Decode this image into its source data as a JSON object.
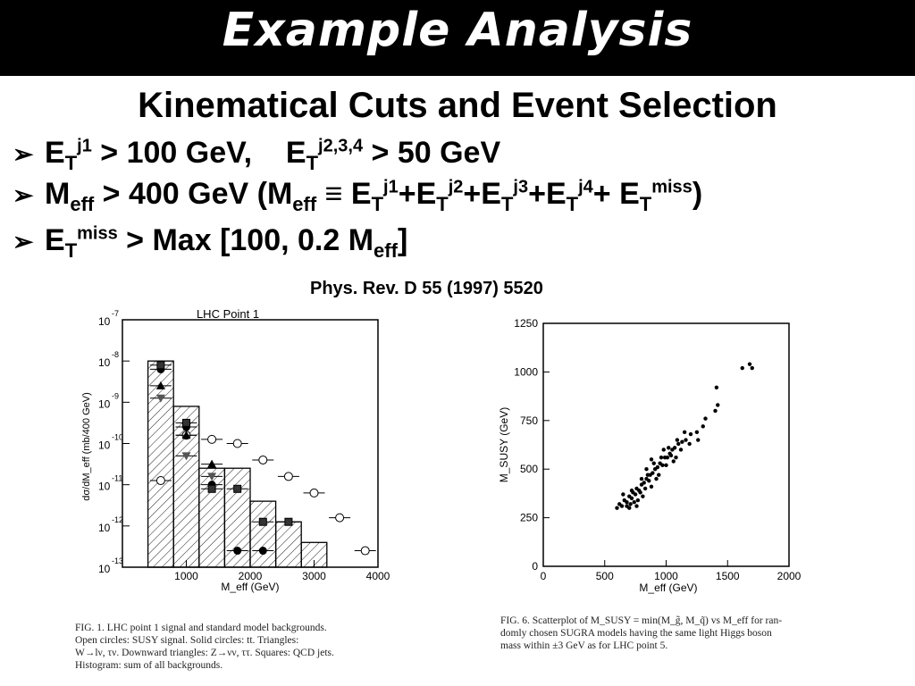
{
  "slide": {
    "title": "Example Analysis",
    "subtitle": "Kinematical Cuts and Event Selection",
    "bullets": {
      "b1": {
        "e1": "E",
        "t1": "T",
        "s1": "j1",
        "r1": " > 100 GeV,    E",
        "t2": "T",
        "s2": "j2,3,4",
        "r2": " > 50 GeV"
      },
      "b2": {
        "m": "M",
        "eff1": "eff",
        "r1": " > 400 GeV (M",
        "eff2": "eff",
        "r2": " ≡ E",
        "t1": "T",
        "s1": "j1",
        "r3": "+E",
        "t2": "T",
        "s2": "j2",
        "r4": "+E",
        "t3": "T",
        "s3": "j3",
        "r5": "+E",
        "t4": "T",
        "s4": "j4",
        "r6": "+ E",
        "t5": "T",
        "s5": "miss",
        "r7": ")"
      },
      "b3": {
        "e": "E",
        "t": "T",
        "s": "miss",
        "r1": " > Max [100, 0.2 M",
        "eff": "eff",
        "r2": "]"
      }
    },
    "reference": "Phys. Rev. D 55 (1997) 5520"
  },
  "left_figure": {
    "caption_lines": [
      "FIG. 1.  LHC point 1 signal and standard model backgrounds.",
      "Open circles: SUSY signal. Solid circles: tt. Triangles:",
      "W→lν, τν. Downward triangles: Z→νν, ττ. Squares: QCD jets.",
      "Histogram: sum of all backgrounds."
    ]
  },
  "right_figure": {
    "caption_lines": [
      "FIG. 6.  Scatterplot of M_SUSY = min(M_g̃, M_q̃) vs M_eff for ran-",
      "domly chosen SUGRA models having the same light Higgs boson",
      "mass within ±3 GeV as for LHC point 5."
    ]
  },
  "chart_data": [
    {
      "type": "scatter",
      "title": "LHC Point 1",
      "xlabel": "M_eff (GeV)",
      "ylabel": "dσ/dM_eff (mb/400 GeV)",
      "xlim": [
        0,
        4000
      ],
      "ylim_exp": [
        -13,
        -7
      ],
      "log_y": true,
      "x_ticks": [
        "1000",
        "2000",
        "3000",
        "4000"
      ],
      "y_tick_exponents": [
        "-7",
        "-8",
        "-9",
        "-10",
        "-11",
        "-12",
        "-13"
      ],
      "y_tick_base": "10",
      "histogram": {
        "bin_edges": [
          400,
          800,
          1200,
          1600,
          2000,
          2400,
          2800,
          3200
        ],
        "log_values": [
          -8.0,
          -9.1,
          -10.6,
          -10.6,
          -11.4,
          -11.9,
          -12.4
        ]
      },
      "series": [
        {
          "marker": "open-circle",
          "x": [
            600,
            1000,
            1400,
            1800,
            2200,
            2600,
            3000,
            3400,
            3800
          ],
          "log_y": [
            -10.9,
            -9.8,
            -9.9,
            -10.0,
            -10.4,
            -10.8,
            -11.2,
            -11.8,
            -12.6
          ]
        },
        {
          "marker": "solid-circle",
          "x": [
            600,
            1000,
            1400,
            1800,
            2200
          ],
          "log_y": [
            -8.2,
            -9.6,
            -11.0,
            -12.6,
            -12.6
          ]
        },
        {
          "marker": "triangle",
          "x": [
            600,
            1000,
            1400
          ],
          "log_y": [
            -8.6,
            -9.8,
            -10.5
          ]
        },
        {
          "marker": "down-triangle",
          "x": [
            600,
            1000,
            1400
          ],
          "log_y": [
            -8.9,
            -10.3,
            -10.8
          ]
        },
        {
          "marker": "square",
          "x": [
            600,
            1000,
            1400,
            1800,
            2200,
            2600
          ],
          "log_y": [
            -8.1,
            -9.5,
            -11.1,
            -11.1,
            -11.9,
            -11.9
          ]
        }
      ]
    },
    {
      "type": "scatter",
      "xlabel": "M_eff (GeV)",
      "ylabel": "M_SUSY (GeV)",
      "xlim": [
        0,
        2000
      ],
      "ylim": [
        0,
        1250
      ],
      "x_ticks": [
        "0",
        "500",
        "1000",
        "1500",
        "2000"
      ],
      "y_ticks": [
        "0",
        "250",
        "500",
        "750",
        "1000",
        "1250"
      ],
      "points": [
        [
          600,
          300
        ],
        [
          620,
          320
        ],
        [
          640,
          310
        ],
        [
          660,
          340
        ],
        [
          680,
          330
        ],
        [
          700,
          360
        ],
        [
          720,
          350
        ],
        [
          710,
          320
        ],
        [
          730,
          380
        ],
        [
          750,
          370
        ],
        [
          760,
          400
        ],
        [
          780,
          390
        ],
        [
          800,
          420
        ],
        [
          790,
          380
        ],
        [
          820,
          430
        ],
        [
          840,
          450
        ],
        [
          860,
          440
        ],
        [
          870,
          470
        ],
        [
          890,
          480
        ],
        [
          910,
          500
        ],
        [
          930,
          510
        ],
        [
          950,
          530
        ],
        [
          970,
          520
        ],
        [
          990,
          560
        ],
        [
          1010,
          560
        ],
        [
          1030,
          580
        ],
        [
          1050,
          600
        ],
        [
          1070,
          610
        ],
        [
          1100,
          630
        ],
        [
          1130,
          640
        ],
        [
          1160,
          650
        ],
        [
          1200,
          680
        ],
        [
          1250,
          690
        ],
        [
          1300,
          720
        ],
        [
          1320,
          760
        ],
        [
          1400,
          800
        ],
        [
          1410,
          920
        ],
        [
          1420,
          830
        ],
        [
          1620,
          1020
        ],
        [
          1680,
          1040
        ],
        [
          1700,
          1020
        ],
        [
          650,
          370
        ],
        [
          680,
          310
        ],
        [
          740,
          330
        ],
        [
          770,
          340
        ],
        [
          800,
          450
        ],
        [
          830,
          400
        ],
        [
          850,
          470
        ],
        [
          880,
          410
        ],
        [
          900,
          530
        ],
        [
          940,
          470
        ],
        [
          960,
          560
        ],
        [
          1000,
          520
        ],
        [
          1020,
          610
        ],
        [
          1060,
          540
        ],
        [
          1090,
          650
        ],
        [
          1120,
          600
        ],
        [
          1150,
          690
        ],
        [
          1190,
          630
        ],
        [
          1260,
          650
        ],
        [
          700,
          300
        ],
        [
          720,
          390
        ],
        [
          760,
          310
        ],
        [
          810,
          360
        ],
        [
          840,
          500
        ],
        [
          880,
          550
        ],
        [
          920,
          450
        ],
        [
          980,
          600
        ],
        [
          1040,
          570
        ],
        [
          1080,
          560
        ]
      ]
    }
  ]
}
